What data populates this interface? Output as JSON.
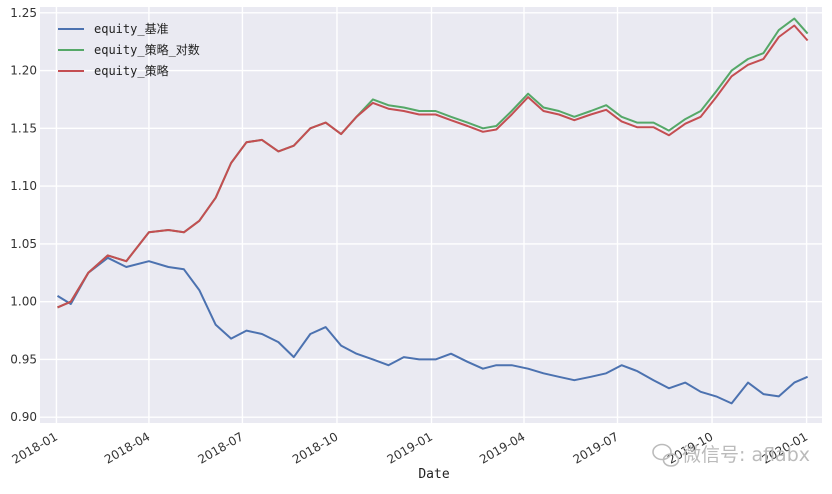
{
  "chart_data": {
    "type": "line",
    "title": "",
    "xlabel": "Date",
    "ylabel": "",
    "ylim": [
      0.895,
      1.255
    ],
    "x_range": [
      "2017-12-16",
      "2020-01-16"
    ],
    "xticks": [
      "2018-01",
      "2018-04",
      "2018-07",
      "2018-10",
      "2019-01",
      "2019-04",
      "2019-07",
      "2019-10",
      "2020-01"
    ],
    "yticks": [
      0.9,
      0.95,
      1.0,
      1.05,
      1.1,
      1.15,
      1.2,
      1.25
    ],
    "grid": true,
    "legend_position": "top-left",
    "x": [
      "2018-01-02",
      "2018-01-15",
      "2018-02-01",
      "2018-02-20",
      "2018-03-10",
      "2018-04-01",
      "2018-04-20",
      "2018-05-05",
      "2018-05-20",
      "2018-06-05",
      "2018-06-20",
      "2018-07-05",
      "2018-07-20",
      "2018-08-05",
      "2018-08-20",
      "2018-09-05",
      "2018-09-20",
      "2018-10-05",
      "2018-10-20",
      "2018-11-05",
      "2018-11-20",
      "2018-12-05",
      "2018-12-20",
      "2019-01-05",
      "2019-01-20",
      "2019-02-05",
      "2019-02-20",
      "2019-03-05",
      "2019-03-20",
      "2019-04-05",
      "2019-04-20",
      "2019-05-05",
      "2019-05-20",
      "2019-06-05",
      "2019-06-20",
      "2019-07-05",
      "2019-07-20",
      "2019-08-05",
      "2019-08-20",
      "2019-09-05",
      "2019-09-20",
      "2019-10-05",
      "2019-10-20",
      "2019-11-05",
      "2019-11-20",
      "2019-12-05",
      "2019-12-20",
      "2020-01-02"
    ],
    "series": [
      {
        "name": "equity_基准",
        "color": "#4c72b0",
        "values": [
          1.005,
          0.998,
          1.025,
          1.038,
          1.03,
          1.035,
          1.03,
          1.028,
          1.01,
          0.98,
          0.968,
          0.975,
          0.972,
          0.965,
          0.952,
          0.972,
          0.978,
          0.962,
          0.955,
          0.95,
          0.945,
          0.952,
          0.95,
          0.95,
          0.955,
          0.948,
          0.942,
          0.945,
          0.945,
          0.942,
          0.938,
          0.935,
          0.932,
          0.935,
          0.938,
          0.945,
          0.94,
          0.932,
          0.925,
          0.93,
          0.922,
          0.918,
          0.912,
          0.93,
          0.92,
          0.918,
          0.93,
          0.935
        ]
      },
      {
        "name": "equity_策略_对数",
        "color": "#55a868",
        "values": [
          0.995,
          1.0,
          1.025,
          1.04,
          1.035,
          1.06,
          1.062,
          1.06,
          1.07,
          1.09,
          1.12,
          1.138,
          1.14,
          1.13,
          1.135,
          1.15,
          1.155,
          1.145,
          1.16,
          1.175,
          1.17,
          1.168,
          1.165,
          1.165,
          1.16,
          1.155,
          1.15,
          1.152,
          1.165,
          1.18,
          1.168,
          1.165,
          1.16,
          1.165,
          1.17,
          1.16,
          1.155,
          1.155,
          1.148,
          1.158,
          1.165,
          1.182,
          1.2,
          1.21,
          1.215,
          1.235,
          1.245,
          1.232
        ]
      },
      {
        "name": "equity_策略",
        "color": "#c44e52",
        "values": [
          0.995,
          1.0,
          1.025,
          1.04,
          1.035,
          1.06,
          1.062,
          1.06,
          1.07,
          1.09,
          1.12,
          1.138,
          1.14,
          1.13,
          1.135,
          1.15,
          1.155,
          1.145,
          1.16,
          1.172,
          1.167,
          1.165,
          1.162,
          1.162,
          1.157,
          1.152,
          1.147,
          1.149,
          1.162,
          1.177,
          1.165,
          1.162,
          1.157,
          1.162,
          1.166,
          1.156,
          1.151,
          1.151,
          1.144,
          1.154,
          1.16,
          1.177,
          1.195,
          1.205,
          1.21,
          1.229,
          1.239,
          1.226
        ]
      }
    ]
  },
  "watermark": "微信号: aflabx"
}
